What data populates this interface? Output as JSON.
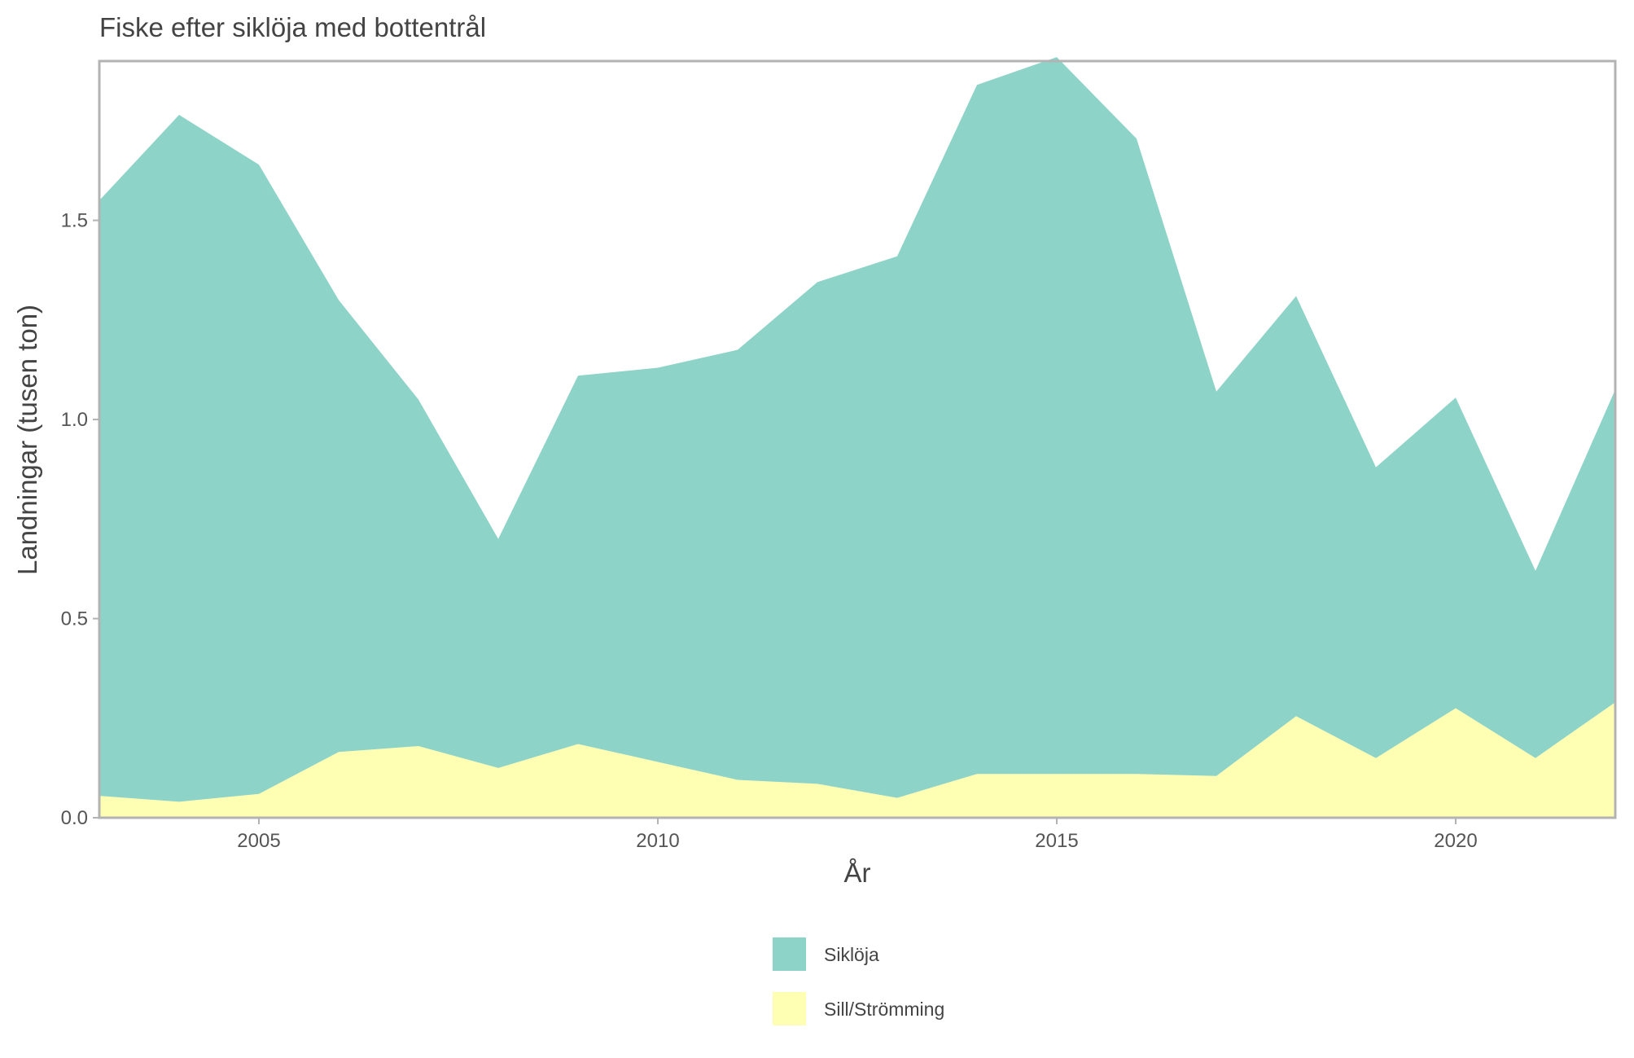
{
  "chart_data": {
    "type": "area",
    "stacked": true,
    "title": "Fiske efter siklöja med bottentrål",
    "xlabel": "År",
    "ylabel": "Landningar (tusen ton)",
    "xlim": [
      2003,
      2022
    ],
    "ylim": [
      0,
      1.9
    ],
    "x_ticks": [
      2005,
      2010,
      2015,
      2020
    ],
    "y_ticks": [
      0.0,
      0.5,
      1.0,
      1.5
    ],
    "y_tick_labels": [
      "0.0",
      "0.5",
      "1.0",
      "1.5"
    ],
    "grid": false,
    "legend_position": "bottom",
    "x": [
      2003,
      2004,
      2005,
      2006,
      2007,
      2008,
      2009,
      2010,
      2011,
      2012,
      2013,
      2014,
      2015,
      2016,
      2017,
      2018,
      2019,
      2020,
      2021,
      2022
    ],
    "series": [
      {
        "name": "Sill/Strömming",
        "color": "#ffffb3",
        "values": [
          0.055,
          0.04,
          0.06,
          0.165,
          0.18,
          0.125,
          0.185,
          0.14,
          0.095,
          0.085,
          0.05,
          0.11,
          0.11,
          0.11,
          0.105,
          0.255,
          0.15,
          0.275,
          0.15,
          0.29
        ]
      },
      {
        "name": "Siklöja",
        "color": "#8dd3c7",
        "values": [
          1.495,
          1.725,
          1.58,
          1.135,
          0.87,
          0.575,
          0.925,
          0.99,
          1.08,
          1.26,
          1.36,
          1.73,
          1.8,
          1.595,
          0.965,
          1.055,
          0.73,
          0.78,
          0.47,
          0.785
        ]
      }
    ],
    "legend_order": [
      "Siklöja",
      "Sill/Strömming"
    ]
  },
  "colors": {
    "panel_border": "#b3b3b3",
    "text": "#444444",
    "tick_text": "#555555"
  }
}
